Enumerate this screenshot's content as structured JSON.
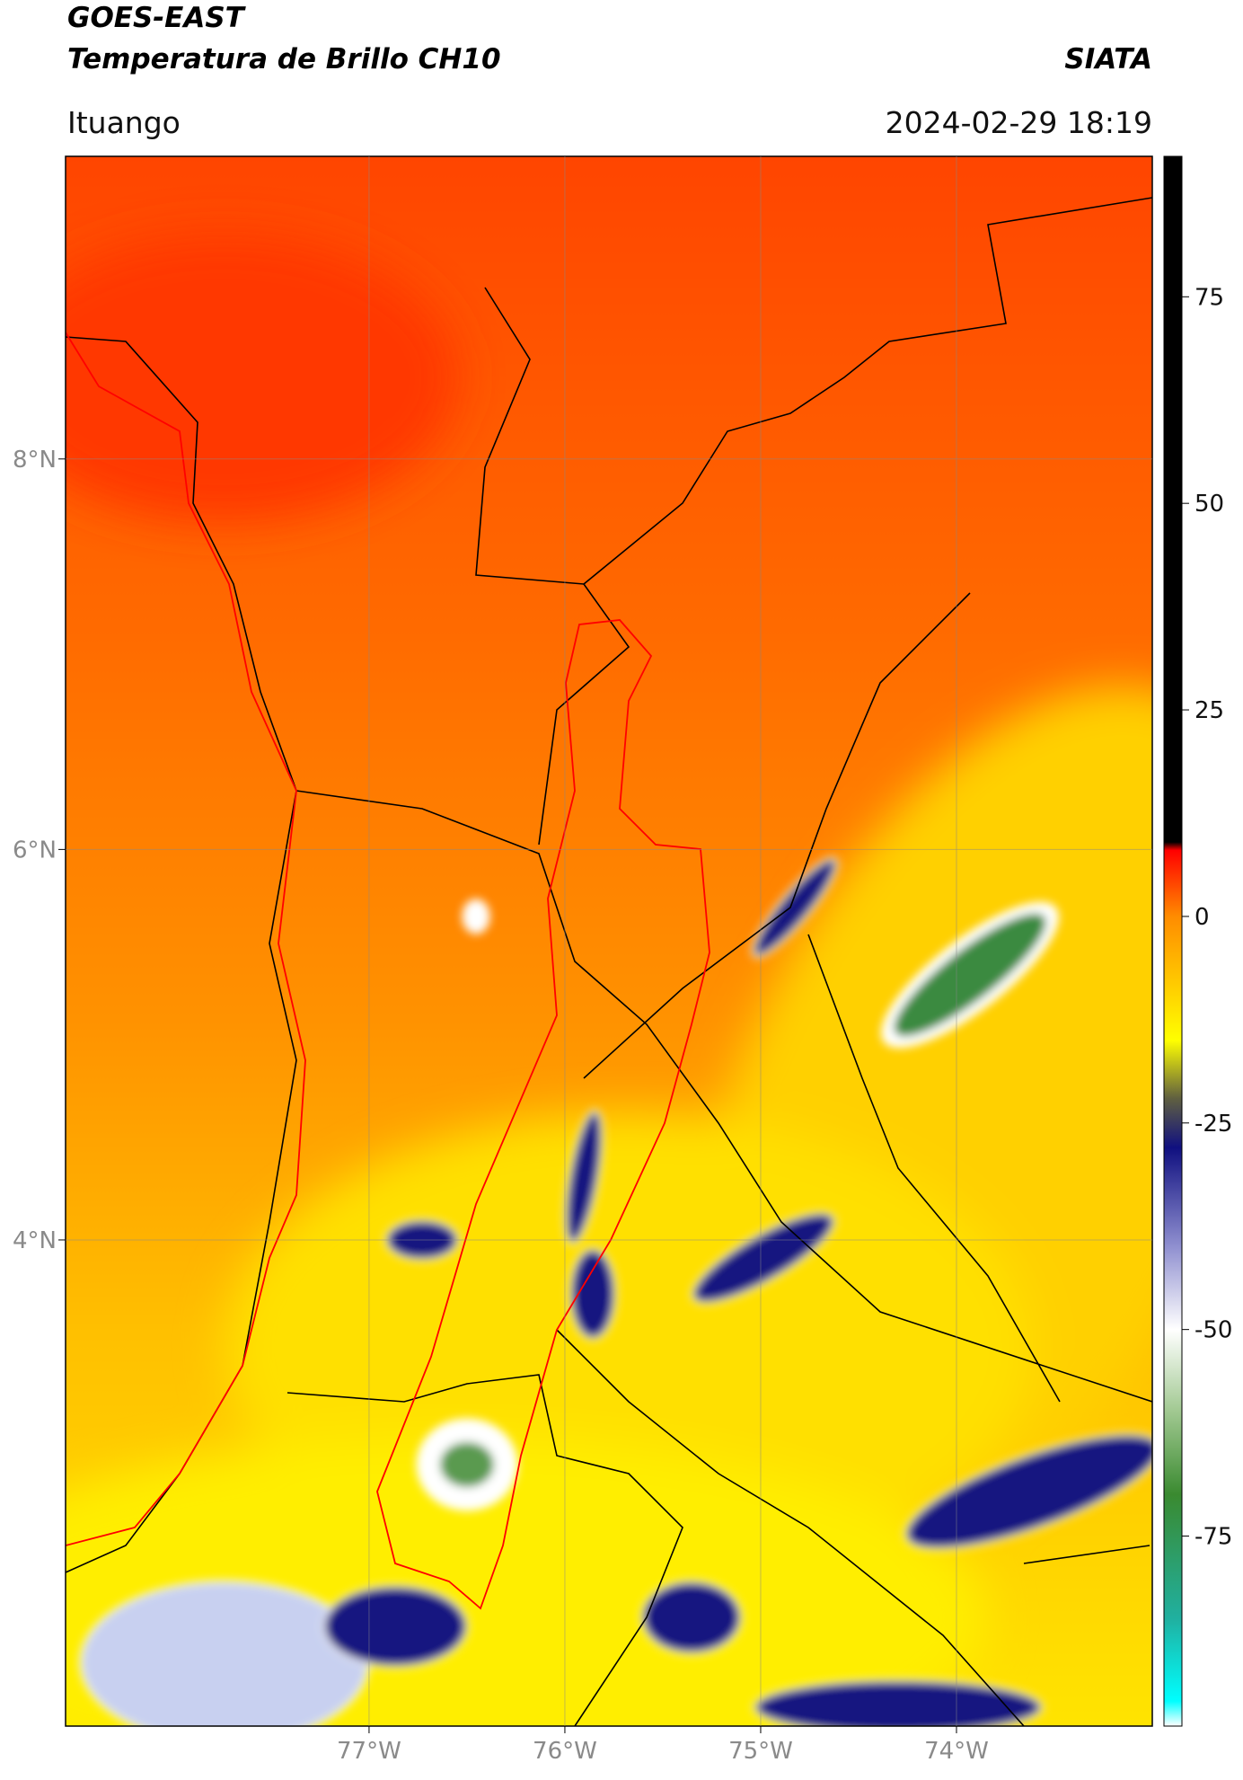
{
  "header": {
    "title": "GOES-EAST",
    "subtitle": "Temperatura de Brillo CH10",
    "source": "SIATA",
    "location": "Ituango",
    "datetime": "2024-02-29 18:19"
  },
  "map": {
    "xlim": [
      -78.55,
      -73.0
    ],
    "ylim": [
      1.51,
      9.55
    ],
    "xticks": [
      {
        "value": -77,
        "label": "77°W"
      },
      {
        "value": -76,
        "label": "76°W"
      },
      {
        "value": -75,
        "label": "75°W"
      },
      {
        "value": -74,
        "label": "74°W"
      }
    ],
    "yticks": [
      {
        "value": 8,
        "label": "8°N"
      },
      {
        "value": 6,
        "label": "6°N"
      },
      {
        "value": 4,
        "label": "4°N"
      }
    ],
    "grid": true
  },
  "colorbar": {
    "lim": [
      -98,
      92
    ],
    "ticks": [
      75,
      50,
      25,
      0,
      -25,
      -50,
      -75
    ],
    "stops": [
      {
        "value": -98,
        "color": "#ffffff"
      },
      {
        "value": -95,
        "color": "#00ffff"
      },
      {
        "value": -85,
        "color": "#20b0a0"
      },
      {
        "value": -70,
        "color": "#3a8a30"
      },
      {
        "value": -60,
        "color": "#a0c890"
      },
      {
        "value": -50,
        "color": "#ffffff"
      },
      {
        "value": -40,
        "color": "#9090d0"
      },
      {
        "value": -28,
        "color": "#101080"
      },
      {
        "value": -22,
        "color": "#606040"
      },
      {
        "value": -15,
        "color": "#ffff00"
      },
      {
        "value": 0,
        "color": "#ff8c00"
      },
      {
        "value": 8,
        "color": "#ff0000"
      },
      {
        "value": 9,
        "color": "#000000"
      },
      {
        "value": 92,
        "color": "#000000"
      }
    ]
  }
}
